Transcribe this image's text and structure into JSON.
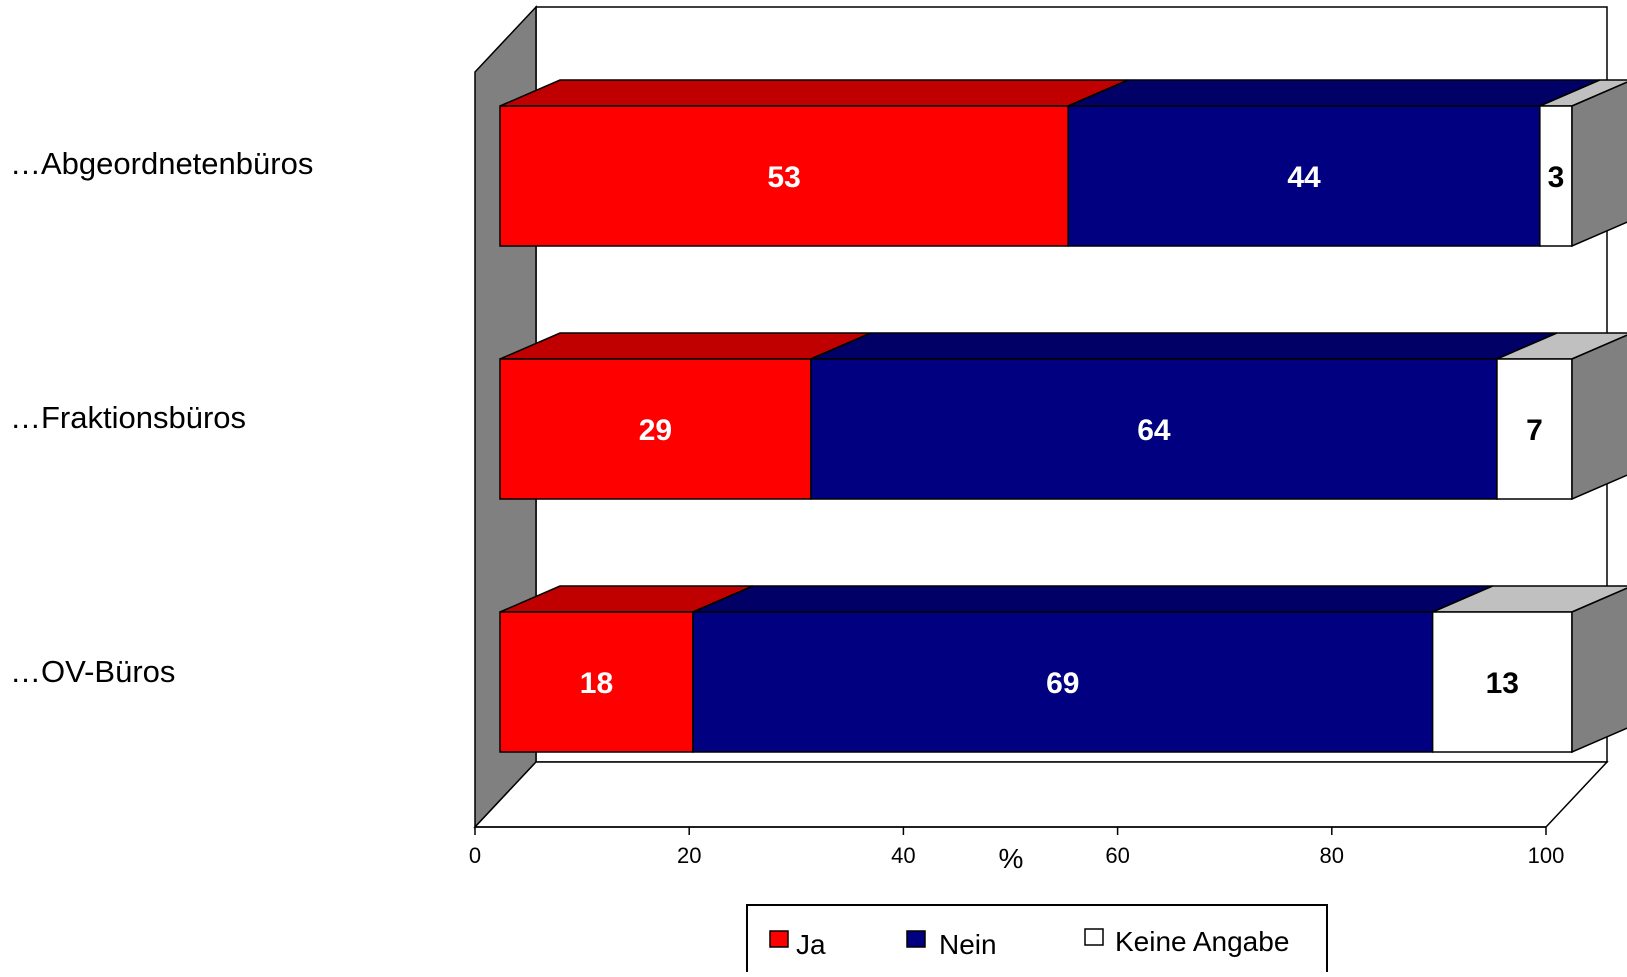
{
  "chart_data": {
    "type": "bar",
    "orientation": "horizontal",
    "stacked": true,
    "three_d": true,
    "categories": [
      "…Abgeordnetenbüros",
      "…Fraktionsbüros",
      "…OV-Büros"
    ],
    "series": [
      {
        "name": "Ja",
        "values": [
          53,
          29,
          18
        ],
        "color": "#ff0000",
        "top_color": "#c00000",
        "label_color": "#ffffff"
      },
      {
        "name": "Nein",
        "values": [
          44,
          64,
          69
        ],
        "color": "#000080",
        "top_color": "#000066",
        "label_color": "#ffffff"
      },
      {
        "name": "Keine Angabe",
        "values": [
          3,
          7,
          13
        ],
        "color": "#ffffff",
        "top_color": "#c0c0c0",
        "label_color": "#000000"
      }
    ],
    "xlim": [
      0,
      100
    ],
    "xticks": [
      "0",
      "20",
      "40",
      "60",
      "80",
      "100"
    ],
    "xlabel": "%",
    "grid": false,
    "legend_position": "bottom-center",
    "wall_color": "#808080",
    "bar_end_color": "#808080"
  }
}
